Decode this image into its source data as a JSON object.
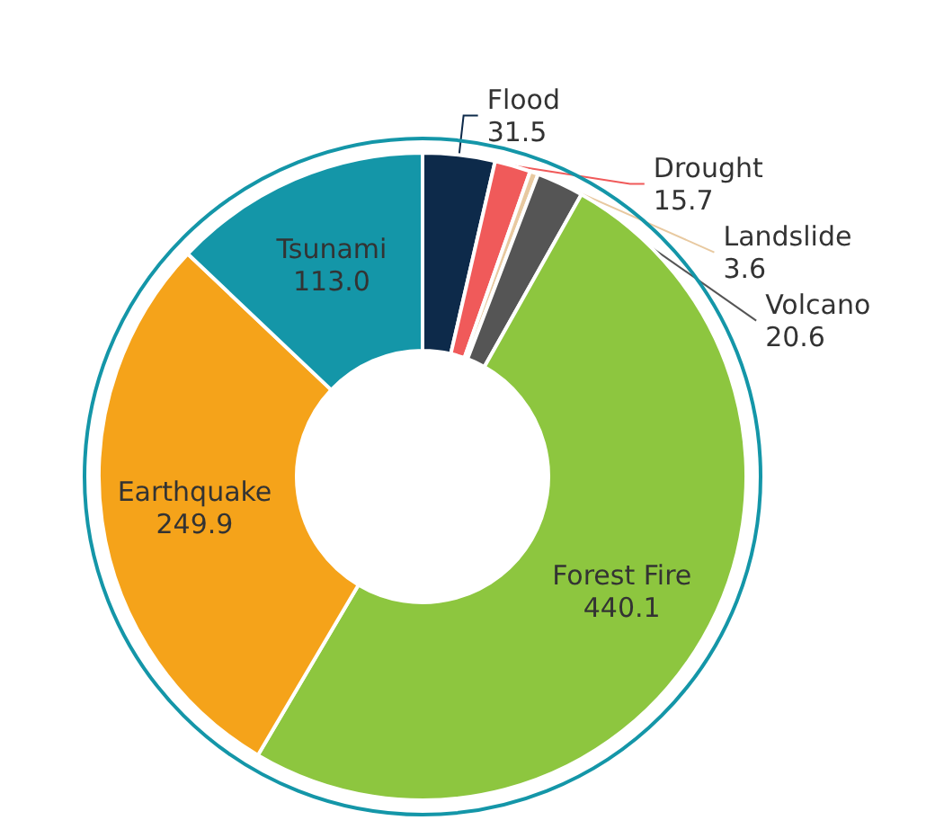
{
  "chart_data": {
    "type": "donut",
    "categories": [
      "Flood",
      "Drought",
      "Landslide",
      "Volcano",
      "Forest Fire",
      "Earthquake",
      "Tsunami"
    ],
    "values": [
      31.5,
      15.7,
      3.6,
      20.6,
      440.1,
      249.9,
      113.0
    ],
    "value_labels": [
      "31.5",
      "15.7",
      "3.6",
      "20.6",
      "440.1",
      "249.9",
      "113.0"
    ],
    "colors": [
      "#0d2a4a",
      "#f05a5a",
      "#e8c9a0",
      "#555555",
      "#8dc63f",
      "#f5a31a",
      "#1496a8"
    ],
    "legend": false
  }
}
